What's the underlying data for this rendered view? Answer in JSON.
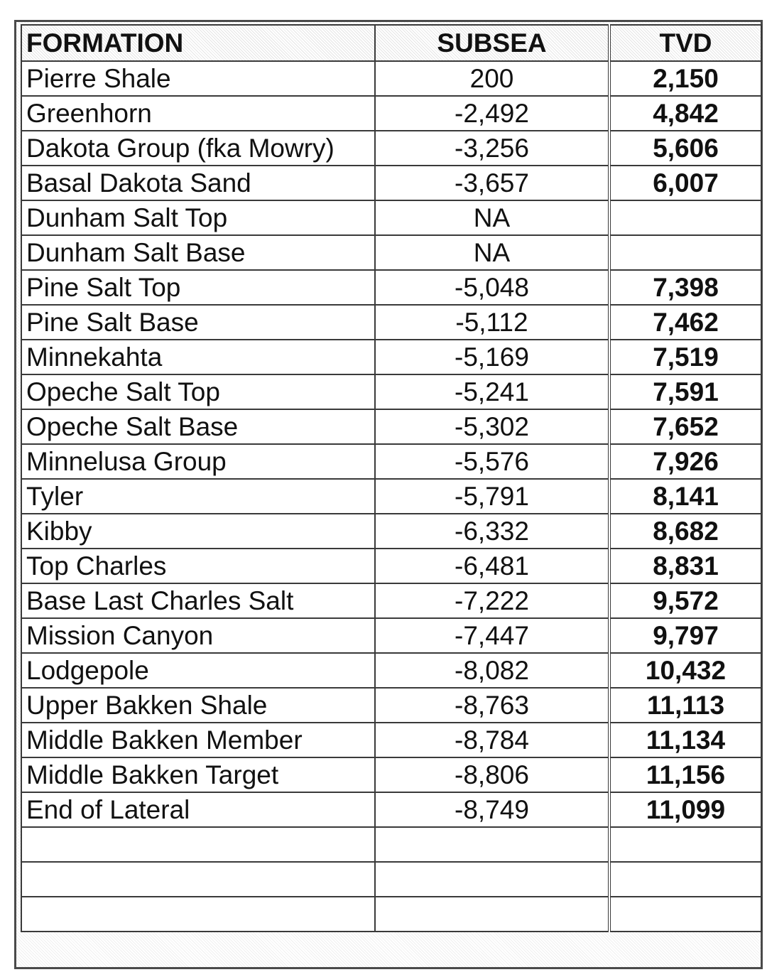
{
  "headers": {
    "formation": "FORMATION",
    "subsea": "SUBSEA",
    "tvd": "TVD"
  },
  "rows": [
    {
      "formation": "Pierre Shale",
      "subsea": "200",
      "tvd": "2,150"
    },
    {
      "formation": "Greenhorn",
      "subsea": "-2,492",
      "tvd": "4,842"
    },
    {
      "formation": "Dakota Group (fka Mowry)",
      "subsea": "-3,256",
      "tvd": "5,606"
    },
    {
      "formation": "Basal Dakota Sand",
      "subsea": "-3,657",
      "tvd": "6,007"
    },
    {
      "formation": "Dunham Salt Top",
      "subsea": "NA",
      "tvd": ""
    },
    {
      "formation": "Dunham Salt Base",
      "subsea": "NA",
      "tvd": ""
    },
    {
      "formation": "Pine Salt Top",
      "subsea": "-5,048",
      "tvd": "7,398"
    },
    {
      "formation": "Pine Salt Base",
      "subsea": "-5,112",
      "tvd": "7,462"
    },
    {
      "formation": "Minnekahta",
      "subsea": "-5,169",
      "tvd": "7,519"
    },
    {
      "formation": "Opeche Salt Top",
      "subsea": "-5,241",
      "tvd": "7,591"
    },
    {
      "formation": "Opeche Salt Base",
      "subsea": "-5,302",
      "tvd": "7,652"
    },
    {
      "formation": "Minnelusa Group",
      "subsea": "-5,576",
      "tvd": "7,926"
    },
    {
      "formation": "Tyler",
      "subsea": "-5,791",
      "tvd": "8,141"
    },
    {
      "formation": "Kibby",
      "subsea": "-6,332",
      "tvd": "8,682"
    },
    {
      "formation": "Top Charles",
      "subsea": "-6,481",
      "tvd": "8,831"
    },
    {
      "formation": "Base Last Charles Salt",
      "subsea": "-7,222",
      "tvd": "9,572"
    },
    {
      "formation": "Mission Canyon",
      "subsea": "-7,447",
      "tvd": "9,797"
    },
    {
      "formation": "Lodgepole",
      "subsea": "-8,082",
      "tvd": "10,432"
    },
    {
      "formation": "Upper Bakken Shale",
      "subsea": "-8,763",
      "tvd": "11,113"
    },
    {
      "formation": "Middle Bakken Member",
      "subsea": "-8,784",
      "tvd": "11,134"
    },
    {
      "formation": "Middle Bakken Target",
      "subsea": "-8,806",
      "tvd": "11,156"
    },
    {
      "formation": "End of Lateral",
      "subsea": "-8,749",
      "tvd": "11,099"
    },
    {
      "formation": "",
      "subsea": "",
      "tvd": ""
    },
    {
      "formation": "",
      "subsea": "",
      "tvd": ""
    },
    {
      "formation": "",
      "subsea": "",
      "tvd": ""
    }
  ]
}
